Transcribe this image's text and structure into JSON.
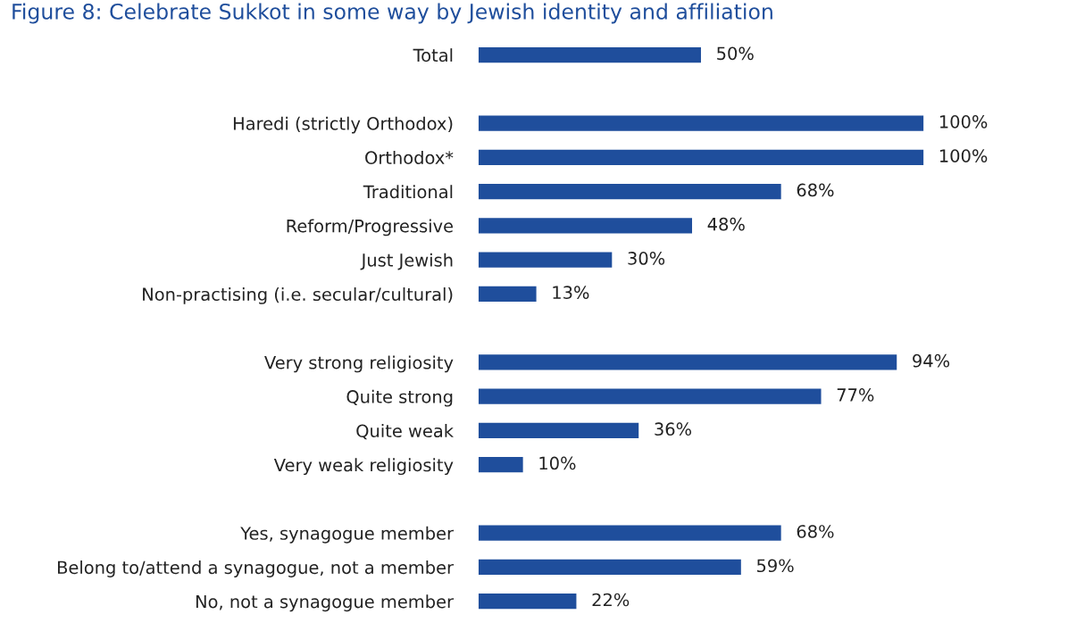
{
  "chart_data": {
    "type": "bar",
    "orientation": "horizontal",
    "title": "Figure 8: Celebrate Sukkot in some way by Jewish identity and affiliation",
    "categories": [
      "Total",
      null,
      "Haredi (strictly Orthodox)",
      "Orthodox*",
      "Traditional",
      "Reform/Progressive",
      "Just Jewish",
      "Non-practising (i.e. secular/cultural)",
      null,
      "Very strong religiosity",
      "Quite strong",
      "Quite weak",
      "Very weak religiosity",
      null,
      "Yes, synagogue member",
      "Belong to/attend a synagogue, not a member",
      "No, not a synagogue member"
    ],
    "values": [
      50,
      null,
      100,
      100,
      68,
      48,
      30,
      13,
      null,
      94,
      77,
      36,
      10,
      null,
      68,
      59,
      22
    ],
    "value_labels": [
      "50%",
      null,
      "100%",
      "100%",
      "68%",
      "48%",
      "30%",
      "13%",
      null,
      "94%",
      "77%",
      "36%",
      "10%",
      null,
      "68%",
      "59%",
      "22%"
    ],
    "color": "#1f4e9c",
    "grid": false,
    "legend": false
  }
}
